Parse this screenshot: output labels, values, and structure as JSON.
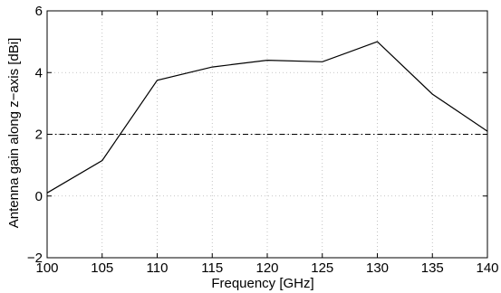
{
  "chart_data": {
    "type": "line",
    "title": "",
    "xlabel": "Frequency [GHz]",
    "ylabel": "Antenna gain along z−axis [dBi]",
    "xlim": [
      100,
      140
    ],
    "ylim": [
      -2,
      6
    ],
    "xticks": [
      100,
      105,
      110,
      115,
      120,
      125,
      130,
      135,
      140
    ],
    "yticks": [
      -2,
      0,
      2,
      4,
      6
    ],
    "xtick_labels": [
      "100",
      "105",
      "110",
      "115",
      "120",
      "125",
      "130",
      "135",
      "140"
    ],
    "ytick_labels": [
      "−2",
      "0",
      "2",
      "4",
      "6"
    ],
    "grid": true,
    "series": [
      {
        "x": [
          100,
          105,
          110,
          115,
          120,
          125,
          130,
          135,
          140
        ],
        "values": [
          0.1,
          1.15,
          3.75,
          4.18,
          4.4,
          4.35,
          5.0,
          3.3,
          2.1
        ],
        "color": "#000000",
        "style": "solid"
      }
    ],
    "reference_lines": [
      {
        "y": 2,
        "color": "#000000",
        "style": "dash-dot"
      }
    ]
  }
}
